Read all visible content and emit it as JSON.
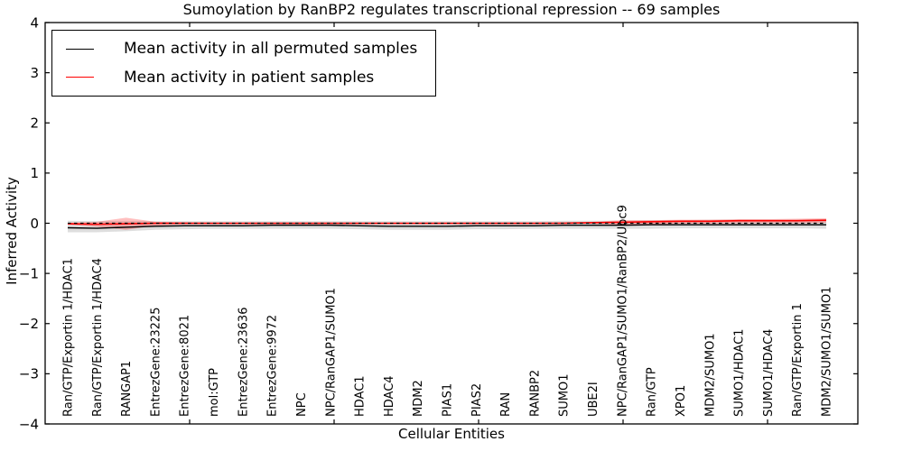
{
  "figure": {
    "title": "Sumoylation by RanBP2 regulates transcriptional repression -- 69 samples"
  },
  "legend": {
    "position": "upper left",
    "border_color": "#000000",
    "items": [
      {
        "label": "Mean activity in all permuted samples",
        "color": "#000000"
      },
      {
        "label": "Mean activity in patient samples",
        "color": "#ff0000"
      }
    ]
  },
  "chart_data": {
    "type": "line",
    "title": "Sumoylation by RanBP2 regulates transcriptional repression -- 69 samples",
    "xlabel": "Cellular Entities",
    "ylabel": "Inferred Activity",
    "ylim": [
      -4,
      4
    ],
    "yticks": [
      4,
      3,
      2,
      1,
      0,
      -1,
      -2,
      -3,
      -4
    ],
    "ytick_labels": [
      "4",
      "3",
      "2",
      "1",
      "0",
      "−1",
      "−2",
      "−3",
      "−4"
    ],
    "grid": false,
    "legend_position": "upper left",
    "categories": [
      "Ran/GTP/Exportin 1/HDAC1",
      "Ran/GTP/Exportin 1/HDAC4",
      "RANGAP1",
      "EntrezGene:23225",
      "EntrezGene:8021",
      "mol:GTP",
      "EntrezGene:23636",
      "EntrezGene:9972",
      "NPC",
      "NPC/RanGAP1/SUMO1",
      "HDAC1",
      "HDAC4",
      "MDM2",
      "PIAS1",
      "PIAS2",
      "RAN",
      "RANBP2",
      "SUMO1",
      "UBE2I",
      "NPC/RanGAP1/SUMO1/RanBP2/Ubc9",
      "Ran/GTP",
      "XPO1",
      "MDM2/SUMO1",
      "SUMO1/HDAC1",
      "SUMO1/HDAC4",
      "Ran/GTP/Exportin 1",
      "MDM2/SUMO1/SUMO1"
    ],
    "series": [
      {
        "name": "Mean activity in all permuted samples",
        "color": "#000000",
        "style": "solid",
        "width": 1.4,
        "values": [
          -0.09,
          -0.1,
          -0.08,
          -0.06,
          -0.05,
          -0.05,
          -0.05,
          -0.04,
          -0.04,
          -0.04,
          -0.05,
          -0.06,
          -0.06,
          -0.06,
          -0.05,
          -0.05,
          -0.05,
          -0.04,
          -0.04,
          -0.04,
          -0.03,
          -0.03,
          -0.03,
          -0.03,
          -0.03,
          -0.03,
          -0.03
        ]
      },
      {
        "name": "Mean activity in patient samples",
        "color": "#ff0000",
        "style": "solid",
        "width": 1.6,
        "values": [
          -0.01,
          -0.02,
          -0.01,
          0.0,
          0.0,
          0.0,
          0.0,
          0.0,
          0.0,
          0.0,
          0.0,
          0.0,
          0.0,
          0.0,
          0.0,
          0.0,
          0.0,
          0.0,
          0.01,
          0.02,
          0.03,
          0.04,
          0.04,
          0.05,
          0.05,
          0.05,
          0.06
        ]
      },
      {
        "name": "zero reference",
        "color": "#000000",
        "style": "dashed",
        "width": 1.3,
        "values": [
          0,
          0,
          0,
          0,
          0,
          0,
          0,
          0,
          0,
          0,
          0,
          0,
          0,
          0,
          0,
          0,
          0,
          0,
          0,
          0,
          0,
          0,
          0,
          0,
          0,
          0,
          0
        ]
      }
    ],
    "bands": [
      {
        "name": "permuted samples spread",
        "color": "#000000",
        "opacity": 0.13,
        "upper": [
          0.05,
          0.04,
          0.04,
          0.04,
          0.04,
          0.04,
          0.04,
          0.04,
          0.04,
          0.04,
          0.04,
          0.04,
          0.04,
          0.04,
          0.04,
          0.04,
          0.04,
          0.05,
          0.05,
          0.05,
          0.06,
          0.06,
          0.07,
          0.07,
          0.07,
          0.07,
          0.08
        ],
        "lower": [
          -0.18,
          -0.18,
          -0.16,
          -0.13,
          -0.12,
          -0.11,
          -0.11,
          -0.11,
          -0.11,
          -0.11,
          -0.12,
          -0.13,
          -0.13,
          -0.13,
          -0.12,
          -0.12,
          -0.11,
          -0.11,
          -0.11,
          -0.11,
          -0.11,
          -0.1,
          -0.1,
          -0.1,
          -0.1,
          -0.1,
          -0.11
        ]
      },
      {
        "name": "patient samples spread",
        "color": "#ff0000",
        "opacity": 0.25,
        "upper": [
          0.01,
          0.03,
          0.11,
          0.03,
          0.02,
          0.01,
          0.01,
          0.01,
          0.01,
          0.01,
          0.01,
          0.01,
          0.01,
          0.01,
          0.01,
          0.01,
          0.01,
          0.02,
          0.03,
          0.06,
          0.06,
          0.07,
          0.07,
          0.08,
          0.08,
          0.09,
          0.1
        ],
        "lower": [
          -0.03,
          -0.07,
          -0.13,
          -0.05,
          -0.02,
          -0.02,
          -0.02,
          -0.02,
          -0.02,
          -0.02,
          -0.02,
          -0.02,
          -0.02,
          -0.02,
          -0.02,
          -0.02,
          -0.02,
          -0.01,
          -0.01,
          -0.03,
          -0.02,
          -0.01,
          -0.01,
          0.0,
          0.0,
          0.0,
          0.01
        ]
      }
    ]
  }
}
